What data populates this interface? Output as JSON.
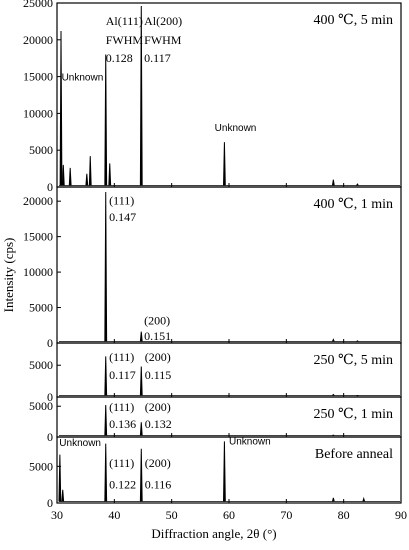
{
  "chart_data": {
    "type": "line",
    "xlabel": "Diffraction angle, 2θ (°)",
    "ylabel": "Intensity (cps)",
    "xlim": [
      30,
      90
    ],
    "xticks": [
      "30",
      "40",
      "50",
      "60",
      "70",
      "80",
      "90"
    ],
    "grid": false,
    "panels": [
      {
        "title": "400 ℃, 5 min",
        "ylim": [
          0,
          25000
        ],
        "yticks": [
          "0",
          "5000",
          "10000",
          "15000",
          "20000",
          "25000"
        ],
        "annotations": [
          {
            "text": "Al(111)",
            "x": 38.5,
            "y": 22000
          },
          {
            "text": "FWHM",
            "x": 38.5,
            "y": 19400
          },
          {
            "text": "0.128",
            "x": 38.5,
            "y": 17000
          },
          {
            "text": "Al(200)",
            "x": 45.2,
            "y": 22000
          },
          {
            "text": "FWHM",
            "x": 45.2,
            "y": 19400
          },
          {
            "text": "0.117",
            "x": 45.2,
            "y": 17000
          },
          {
            "text": "Unknown",
            "x": 30.8,
            "y": 14500
          },
          {
            "text": "Unknown",
            "x": 57.5,
            "y": 7600
          }
        ],
        "peaks": [
          {
            "x": 30.7,
            "y": 21200
          },
          {
            "x": 31.1,
            "y": 3000
          },
          {
            "x": 32.3,
            "y": 2600
          },
          {
            "x": 35.2,
            "y": 1800
          },
          {
            "x": 35.8,
            "y": 4200
          },
          {
            "x": 38.5,
            "y": 18000
          },
          {
            "x": 39.2,
            "y": 3200
          },
          {
            "x": 44.7,
            "y": 24600
          },
          {
            "x": 59.2,
            "y": 6100
          },
          {
            "x": 78.2,
            "y": 1000
          },
          {
            "x": 82.4,
            "y": 400
          }
        ]
      },
      {
        "title": "400 ℃, 1 min",
        "ylim": [
          0,
          22000
        ],
        "yticks": [
          "0",
          "5000",
          "10000",
          "15000",
          "20000"
        ],
        "annotations": [
          {
            "text": "(111)",
            "x": 39.1,
            "y": 19500
          },
          {
            "text": "0.147",
            "x": 39.1,
            "y": 17200
          },
          {
            "text": "(200)",
            "x": 45.2,
            "y": 2600
          },
          {
            "text": "0.151",
            "x": 45.2,
            "y": 400
          }
        ],
        "peaks": [
          {
            "x": 38.5,
            "y": 21300
          },
          {
            "x": 44.7,
            "y": 1600
          },
          {
            "x": 78.2,
            "y": 500
          },
          {
            "x": 82.4,
            "y": 300
          }
        ]
      },
      {
        "title": "250 ℃, 5 min",
        "ylim": [
          0,
          8500
        ],
        "yticks": [
          "0",
          "5000"
        ],
        "annotations": [
          {
            "text": "(111)",
            "x": 39.1,
            "y": 5700
          },
          {
            "text": "0.117",
            "x": 39.1,
            "y": 2800
          },
          {
            "text": "(200)",
            "x": 45.3,
            "y": 5700
          },
          {
            "text": "0.115",
            "x": 45.3,
            "y": 2800
          }
        ],
        "peaks": [
          {
            "x": 38.5,
            "y": 6400
          },
          {
            "x": 44.7,
            "y": 4800
          },
          {
            "x": 78.2,
            "y": 400
          },
          {
            "x": 82.4,
            "y": 200
          }
        ]
      },
      {
        "title": "250 ℃, 1 min",
        "ylim": [
          0,
          6500
        ],
        "yticks": [
          "0",
          "5000"
        ],
        "annotations": [
          {
            "text": "(111)",
            "x": 39.1,
            "y": 4200
          },
          {
            "text": "0.136",
            "x": 39.1,
            "y": 1500
          },
          {
            "text": "(200)",
            "x": 45.3,
            "y": 4200
          },
          {
            "text": "0.132",
            "x": 45.3,
            "y": 1500
          }
        ],
        "peaks": [
          {
            "x": 38.5,
            "y": 5200
          },
          {
            "x": 44.7,
            "y": 2400
          },
          {
            "x": 78.2,
            "y": 300
          }
        ]
      },
      {
        "title": "Before anneal",
        "ylim": [
          0,
          9000
        ],
        "yticks": [
          "0",
          "5000"
        ],
        "annotations": [
          {
            "text": "Unknown",
            "x": 30.4,
            "y": 7800
          },
          {
            "text": "Unknown",
            "x": 60.0,
            "y": 8000
          },
          {
            "text": "(111)",
            "x": 39.1,
            "y": 4900
          },
          {
            "text": "0.122",
            "x": 39.1,
            "y": 2000
          },
          {
            "text": "(200)",
            "x": 45.3,
            "y": 4900
          },
          {
            "text": "0.116",
            "x": 45.3,
            "y": 2000
          }
        ],
        "peaks": [
          {
            "x": 30.5,
            "y": 6600
          },
          {
            "x": 31.0,
            "y": 1800
          },
          {
            "x": 38.5,
            "y": 8100
          },
          {
            "x": 44.7,
            "y": 7400
          },
          {
            "x": 59.2,
            "y": 8400
          },
          {
            "x": 78.2,
            "y": 700
          },
          {
            "x": 83.5,
            "y": 600
          }
        ]
      }
    ]
  }
}
